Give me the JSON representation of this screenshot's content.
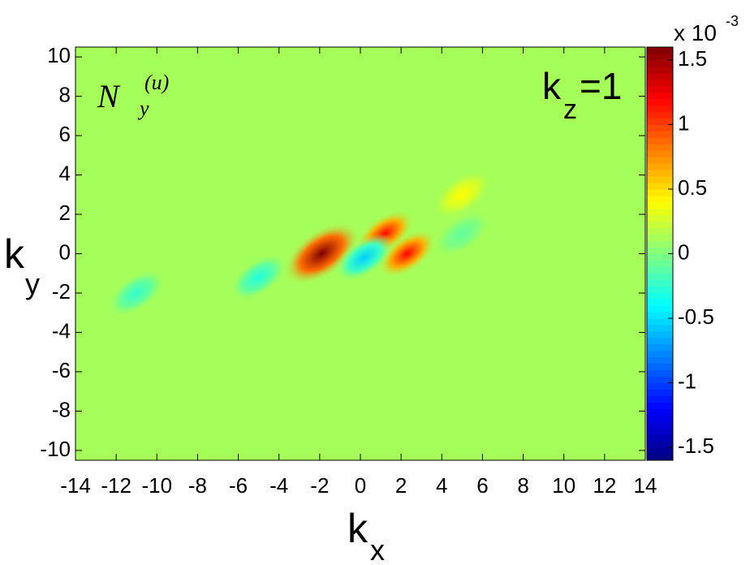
{
  "chart_data": {
    "type": "heatmap",
    "xlim": [
      -14,
      14
    ],
    "ylim": [
      -10.5,
      10.5
    ],
    "xticks": [
      -14,
      -12,
      -10,
      -8,
      -6,
      -4,
      -2,
      0,
      2,
      4,
      6,
      8,
      10,
      12,
      14
    ],
    "yticks": [
      -10,
      -8,
      -6,
      -4,
      -2,
      0,
      2,
      4,
      6,
      8,
      10
    ],
    "x_label": {
      "base": "k",
      "sub": "x"
    },
    "y_label": {
      "base": "k",
      "sub": "y"
    },
    "panel_label": {
      "base": "N",
      "sub": "y",
      "sup": "(u)"
    },
    "annotation": {
      "base": "k",
      "sub": "z",
      "rest": "=1"
    },
    "clim": [
      -1.6,
      1.6
    ],
    "cticks": [
      -1.5,
      -1,
      -0.5,
      0,
      0.5,
      1,
      1.5
    ],
    "colorbar_multiplier": "x 10",
    "colorbar_exponent": "-3",
    "colormap": "jet",
    "background": 0.12,
    "peaks": [
      {
        "x": -1.9,
        "y": 0,
        "z": 1.6
      },
      {
        "x": 1.2,
        "y": 1,
        "z": 1.2
      },
      {
        "x": 2.3,
        "y": 0,
        "z": 1.2
      },
      {
        "x": 0.2,
        "y": -0.2,
        "z": -0.55
      },
      {
        "x": -5,
        "y": -1.2,
        "z": -0.3
      },
      {
        "x": -11,
        "y": -2,
        "z": -0.25
      },
      {
        "x": 5,
        "y": 3,
        "z": 0.4
      },
      {
        "x": 5,
        "y": 1,
        "z": -0.1
      }
    ]
  }
}
